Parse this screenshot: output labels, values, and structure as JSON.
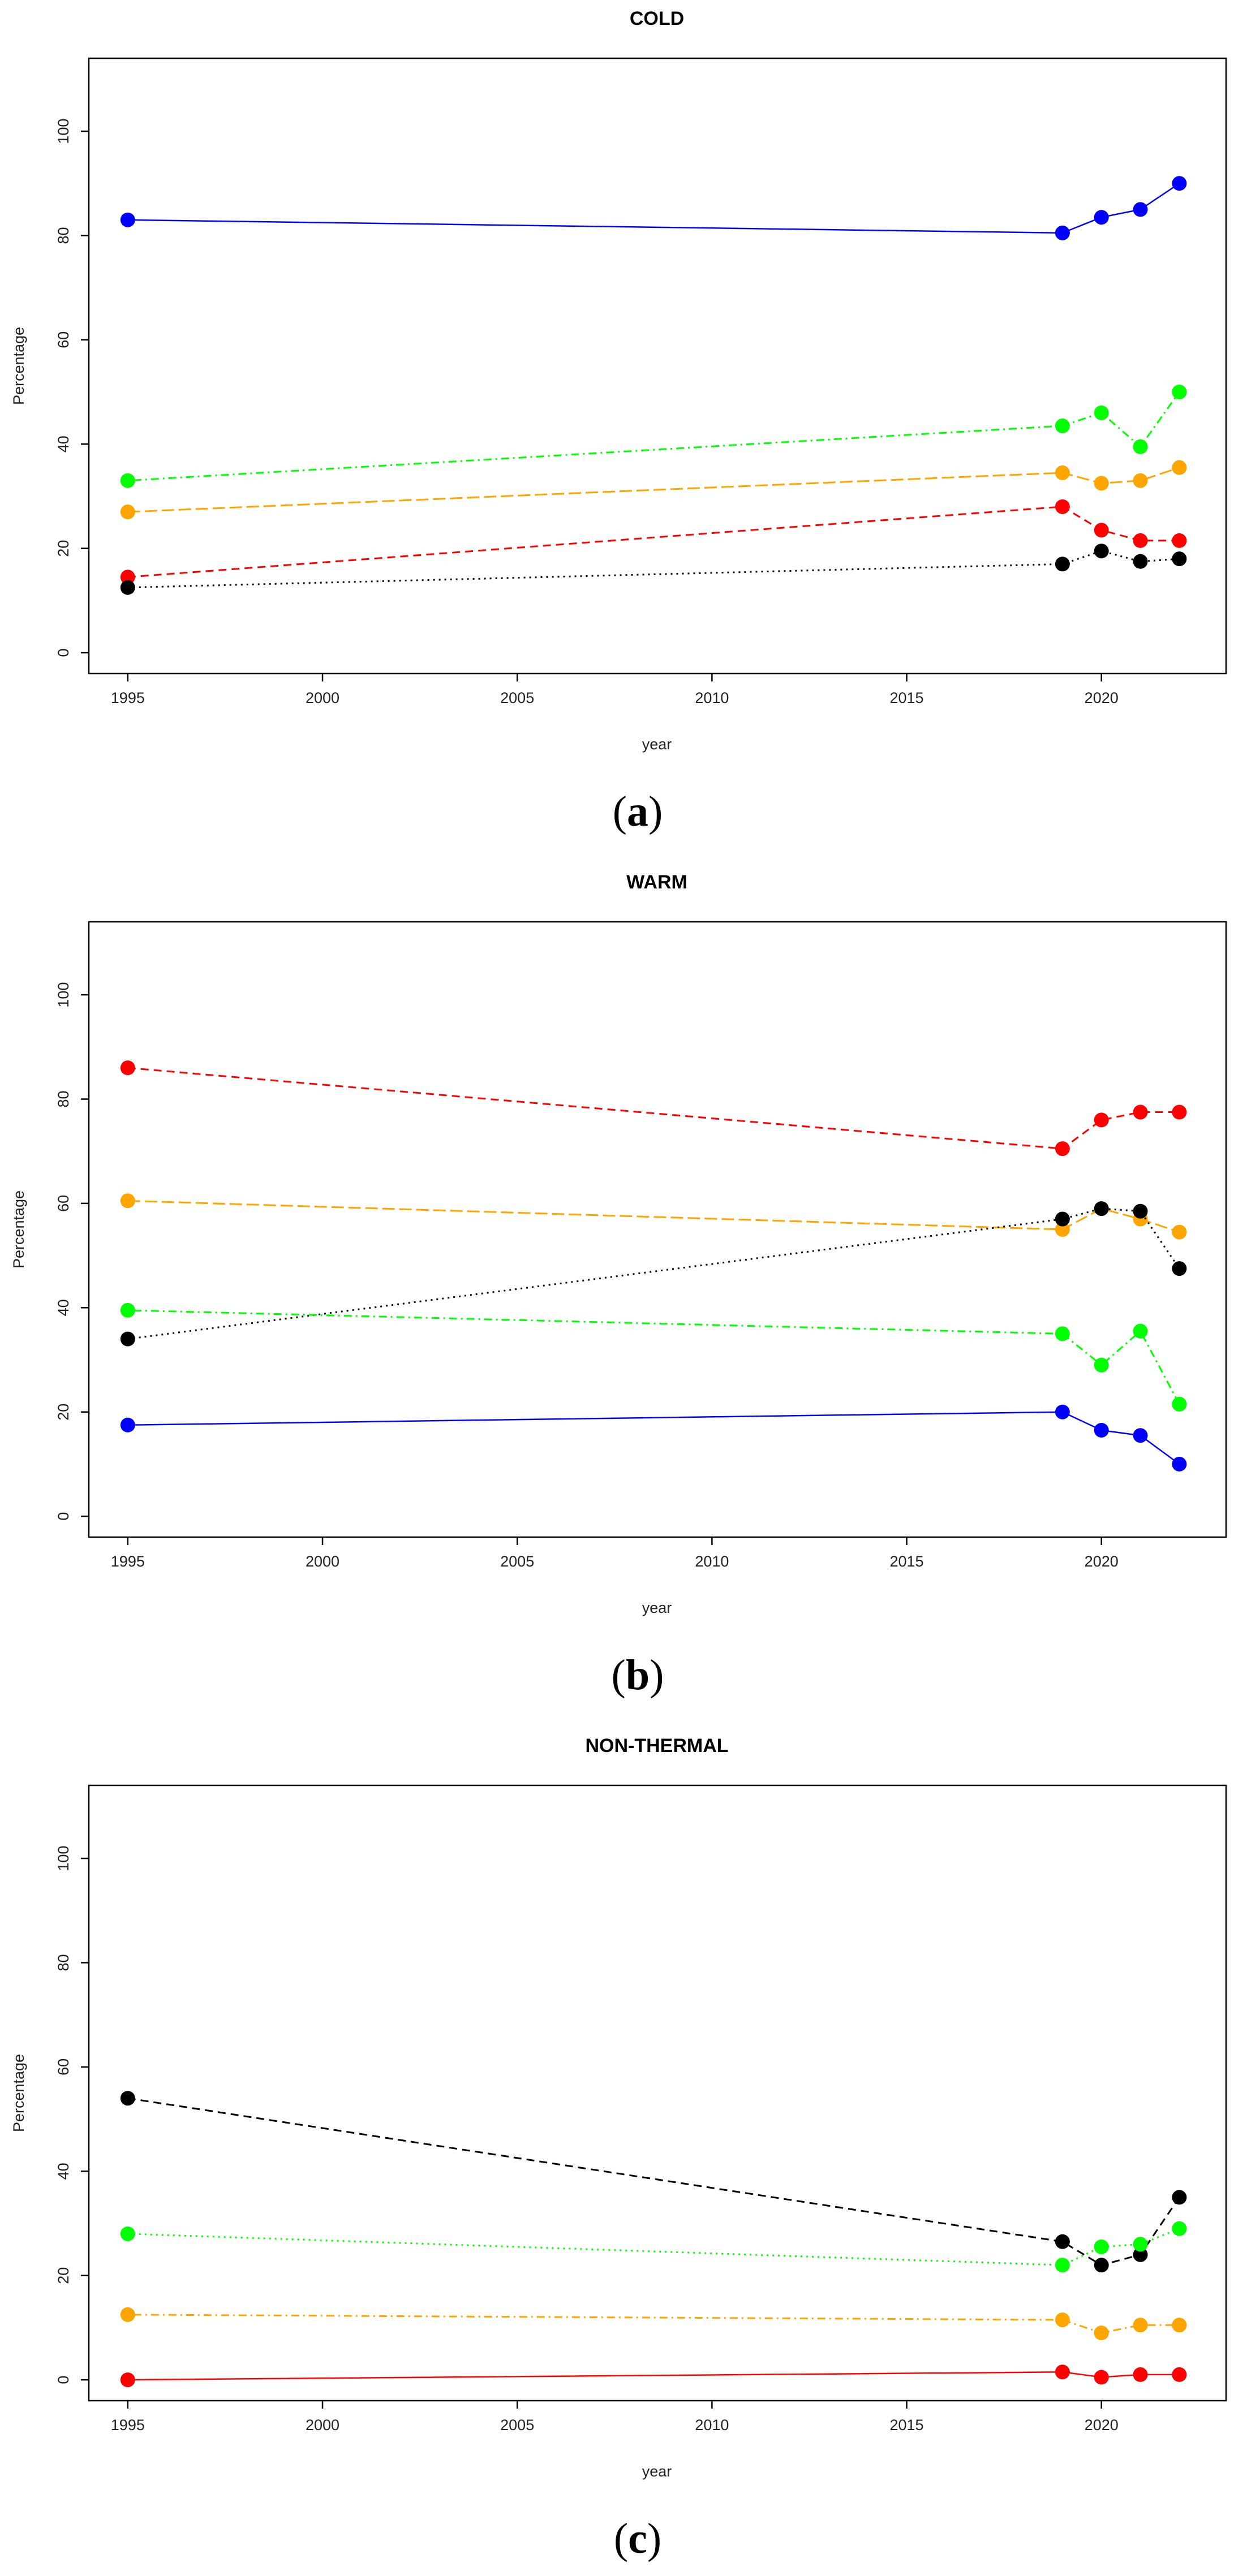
{
  "chart_data": [
    {
      "type": "line",
      "title": "COLD",
      "xlabel": "year",
      "ylabel": "Percentage",
      "xlim": [
        1994,
        2023.2
      ],
      "ylim": [
        -4,
        114
      ],
      "x_ticks": [
        1995,
        2000,
        2005,
        2010,
        2015,
        2020
      ],
      "y_ticks": [
        0,
        20,
        40,
        60,
        80,
        100
      ],
      "grid": false,
      "legend": "none",
      "caption_open": "(",
      "caption_letter": "a",
      "caption_close": ")",
      "x": [
        1995,
        2019,
        2020,
        2021,
        2022
      ],
      "series": [
        {
          "name": "blue",
          "color": "#0000ff",
          "dash": "solid",
          "values": [
            83,
            80.5,
            83.5,
            85,
            90
          ]
        },
        {
          "name": "green",
          "color": "#00ff00",
          "dash": "dotdash",
          "values": [
            33,
            43.5,
            46,
            39.5,
            50
          ]
        },
        {
          "name": "orange",
          "color": "#ffa500",
          "dash": "longdash",
          "values": [
            27,
            34.5,
            32.5,
            33,
            35.5
          ]
        },
        {
          "name": "red",
          "color": "#ff0000",
          "dash": "dashed",
          "values": [
            14.5,
            28,
            23.5,
            21.5,
            21.5
          ]
        },
        {
          "name": "black",
          "color": "#000000",
          "dash": "dotted",
          "values": [
            12.5,
            17,
            19.5,
            17.5,
            18
          ]
        }
      ]
    },
    {
      "type": "line",
      "title": "WARM",
      "xlabel": "year",
      "ylabel": "Percentage",
      "xlim": [
        1994,
        2023.2
      ],
      "ylim": [
        -4,
        114
      ],
      "x_ticks": [
        1995,
        2000,
        2005,
        2010,
        2015,
        2020
      ],
      "y_ticks": [
        0,
        20,
        40,
        60,
        80,
        100
      ],
      "grid": false,
      "legend": "none",
      "caption_open": "(",
      "caption_letter": "b",
      "caption_close": ")",
      "x": [
        1995,
        2019,
        2020,
        2021,
        2022
      ],
      "series": [
        {
          "name": "red",
          "color": "#ff0000",
          "dash": "dashed",
          "values": [
            86,
            70.5,
            76,
            77.5,
            77.5
          ]
        },
        {
          "name": "orange",
          "color": "#ffa500",
          "dash": "longdash",
          "values": [
            60.5,
            55,
            59,
            57,
            54.5
          ]
        },
        {
          "name": "black",
          "color": "#000000",
          "dash": "dotted",
          "values": [
            34,
            57,
            59,
            58.5,
            47.5
          ]
        },
        {
          "name": "green",
          "color": "#00ff00",
          "dash": "dotdash",
          "values": [
            39.5,
            35,
            29,
            35.5,
            21.5
          ]
        },
        {
          "name": "blue",
          "color": "#0000ff",
          "dash": "solid",
          "values": [
            17.5,
            20,
            16.5,
            15.5,
            10
          ]
        }
      ]
    },
    {
      "type": "line",
      "title": "NON-THERMAL",
      "xlabel": "year",
      "ylabel": "Percentage",
      "xlim": [
        1994,
        2023.2
      ],
      "ylim": [
        -4,
        114
      ],
      "x_ticks": [
        1995,
        2000,
        2005,
        2010,
        2015,
        2020
      ],
      "y_ticks": [
        0,
        20,
        40,
        60,
        80,
        100
      ],
      "grid": false,
      "legend": "none",
      "caption_open": "(",
      "caption_letter": "c",
      "caption_close": ")",
      "x": [
        1995,
        2019,
        2020,
        2021,
        2022
      ],
      "series": [
        {
          "name": "black",
          "color": "#000000",
          "dash": "dashed",
          "values": [
            54,
            26.5,
            22,
            24,
            35
          ]
        },
        {
          "name": "green",
          "color": "#00ff00",
          "dash": "dotted",
          "values": [
            28,
            22,
            25.5,
            26,
            29
          ]
        },
        {
          "name": "orange",
          "color": "#ffa500",
          "dash": "dotdash",
          "values": [
            12.5,
            11.5,
            9,
            10.5,
            10.5
          ]
        },
        {
          "name": "red",
          "color": "#ff0000",
          "dash": "solid",
          "values": [
            0,
            1.5,
            0.5,
            1,
            1
          ]
        }
      ]
    }
  ]
}
